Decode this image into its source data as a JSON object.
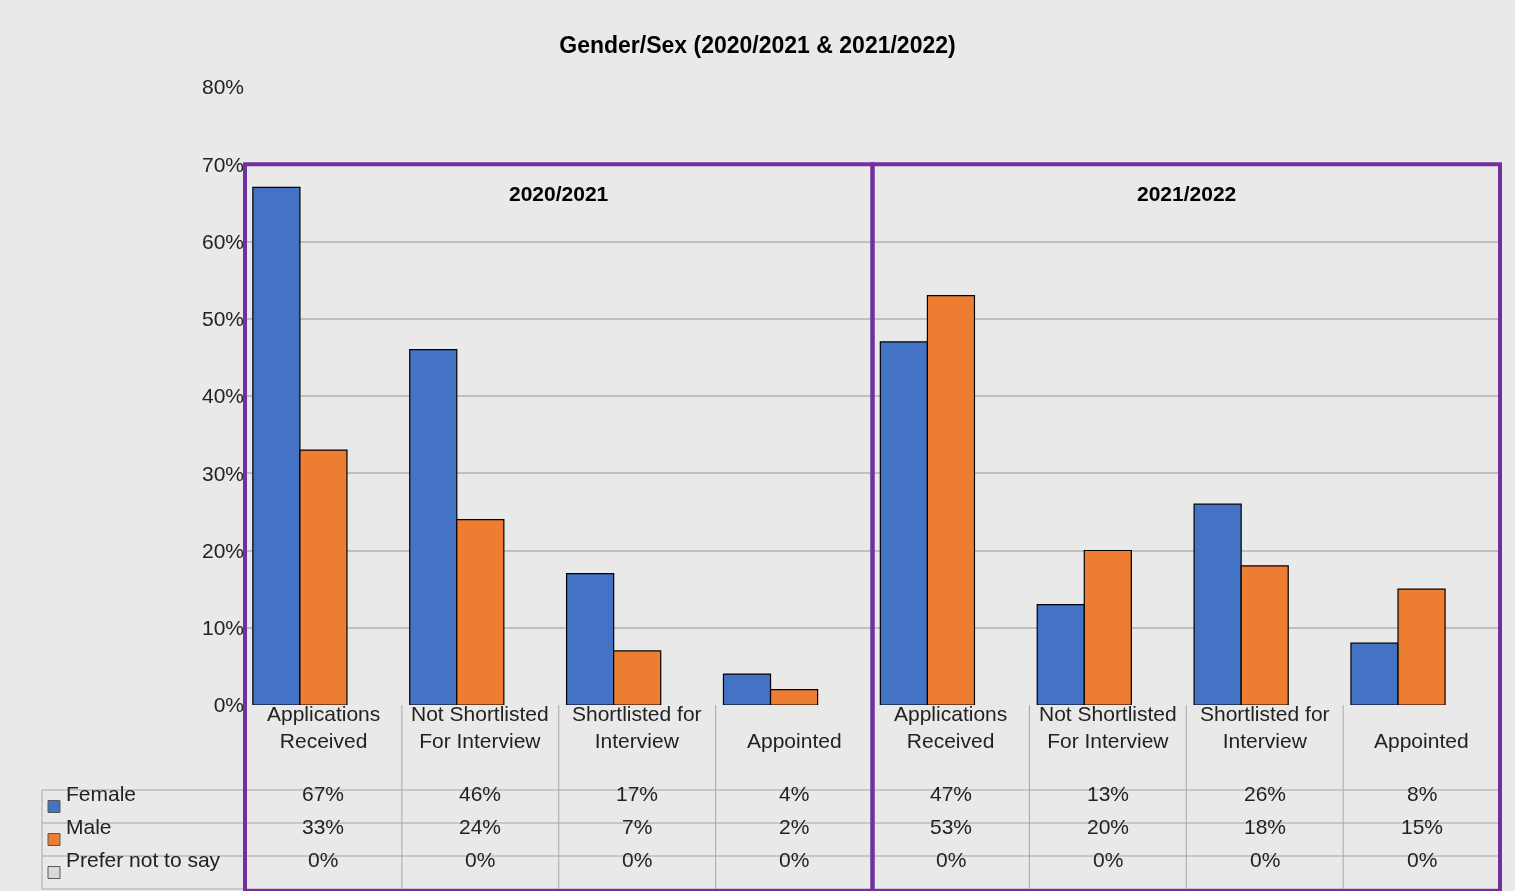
{
  "chart_data": {
    "type": "bar",
    "title": "Gender/Sex (2020/2021 & 2021/2022)",
    "categories": [
      "Applications Received",
      "Not Shortlisted For Interview",
      "Shortlisted for Interview",
      "Appointed",
      "Applications Received",
      "Not Shortlisted For Interview",
      "Shortlisted for Interview",
      "Appointed"
    ],
    "series": [
      {
        "name": "Female",
        "color": "#4472c4",
        "values": [
          67,
          46,
          17,
          4,
          47,
          13,
          26,
          8
        ],
        "value_labels": [
          "67%",
          "46%",
          "17%",
          "4%",
          "47%",
          "13%",
          "26%",
          "8%"
        ]
      },
      {
        "name": "Male",
        "color": "#ed7d31",
        "values": [
          33,
          24,
          7,
          2,
          53,
          20,
          18,
          15
        ],
        "value_labels": [
          "33%",
          "24%",
          "7%",
          "2%",
          "53%",
          "20%",
          "18%",
          "15%"
        ]
      },
      {
        "name": "Prefer not to say",
        "color": "#d9d9d9",
        "values": [
          0,
          0,
          0,
          0,
          0,
          0,
          0,
          0
        ],
        "value_labels": [
          "0%",
          "0%",
          "0%",
          "0%",
          "0%",
          "0%",
          "0%",
          "0%"
        ]
      }
    ],
    "annotations": [
      "2020/2021",
      "2021/2022"
    ],
    "ylim": [
      0,
      80
    ],
    "yticks": [
      {
        "value": 0,
        "label": "0%"
      },
      {
        "value": 10,
        "label": "10%"
      },
      {
        "value": 20,
        "label": "20%"
      },
      {
        "value": 30,
        "label": "30%"
      },
      {
        "value": 40,
        "label": "40%"
      },
      {
        "value": 50,
        "label": "50%"
      },
      {
        "value": 60,
        "label": "60%"
      },
      {
        "value": 70,
        "label": "70%"
      },
      {
        "value": 80,
        "label": "80%"
      }
    ],
    "grid": "y",
    "legend": "bottom left"
  }
}
